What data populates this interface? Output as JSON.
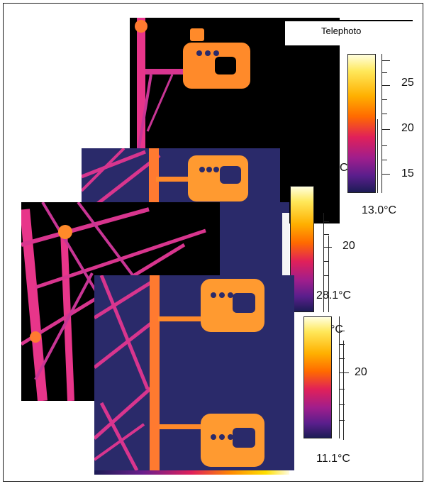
{
  "telephoto_label": "Telephoto",
  "colorbars": [
    {
      "id": "cb1",
      "ticks": [
        "25",
        "20",
        "15"
      ],
      "min_label": "13.0°C"
    },
    {
      "id": "cb2",
      "ticks": [
        "20"
      ],
      "min_label": "28.1°C"
    },
    {
      "id": "cb3",
      "ticks": [
        "20"
      ],
      "min_label": "11.1°C"
    }
  ],
  "overlap_fragments": {
    "c_fragment": "C",
    "c_fragment_2": "°C"
  },
  "colors": {
    "background_cold": "#2a2a6a",
    "structure_hot": "#ff9a30",
    "structure_warm": "#e8358a",
    "sky_black": "#000000"
  }
}
